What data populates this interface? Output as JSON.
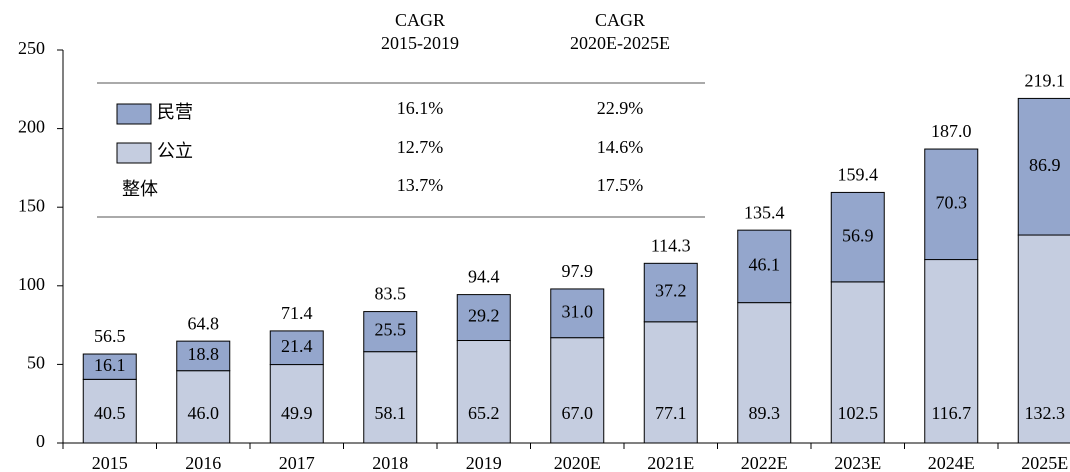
{
  "chart_data": {
    "type": "bar",
    "stacked": true,
    "categories": [
      "2015",
      "2016",
      "2017",
      "2018",
      "2019",
      "2020E",
      "2021E",
      "2022E",
      "2023E",
      "2024E",
      "2025E"
    ],
    "series": [
      {
        "name": "公立",
        "color": "#c5cde0",
        "values": [
          40.5,
          46.0,
          49.9,
          58.1,
          65.2,
          67.0,
          77.1,
          89.3,
          102.5,
          116.7,
          132.3
        ],
        "value_labels": [
          "40.5",
          "46.0",
          "49.9",
          "58.1",
          "65.2",
          "67.0",
          "77.1",
          "89.3",
          "102.5",
          "116.7",
          "132.3"
        ]
      },
      {
        "name": "民营",
        "color": "#94a6cc",
        "values": [
          16.1,
          18.8,
          21.4,
          25.5,
          29.2,
          31.0,
          37.2,
          46.1,
          56.9,
          70.3,
          86.9
        ],
        "value_labels": [
          "16.1",
          "18.8",
          "21.4",
          "25.5",
          "29.2",
          "31.0",
          "37.2",
          "46.1",
          "56.9",
          "70.3",
          "86.9"
        ]
      }
    ],
    "totals": {
      "values": [
        56.5,
        64.8,
        71.4,
        83.5,
        94.4,
        97.9,
        114.3,
        135.4,
        159.4,
        187.0,
        219.1
      ],
      "value_labels": [
        "56.5",
        "64.8",
        "71.4",
        "83.5",
        "94.4",
        "97.9",
        "114.3",
        "135.4",
        "159.4",
        "187.0",
        "219.1"
      ]
    },
    "ylim": [
      0,
      250
    ],
    "yticks": [
      0,
      50,
      100,
      150,
      200,
      250
    ],
    "cagr_table": {
      "columns": [
        [
          "CAGR",
          "2015-2019"
        ],
        [
          "CAGR",
          "2020E-2025E"
        ]
      ],
      "rows": [
        {
          "values": [
            16.1,
            22.9
          ],
          "value_labels": [
            "16.1%",
            "22.9%"
          ]
        },
        {
          "values": [
            12.7,
            14.6
          ],
          "value_labels": [
            "12.7%",
            "14.6%"
          ]
        },
        {
          "label": "整体",
          "values": [
            13.7,
            17.5
          ],
          "value_labels": [
            "13.7%",
            "17.5%"
          ]
        }
      ]
    }
  }
}
